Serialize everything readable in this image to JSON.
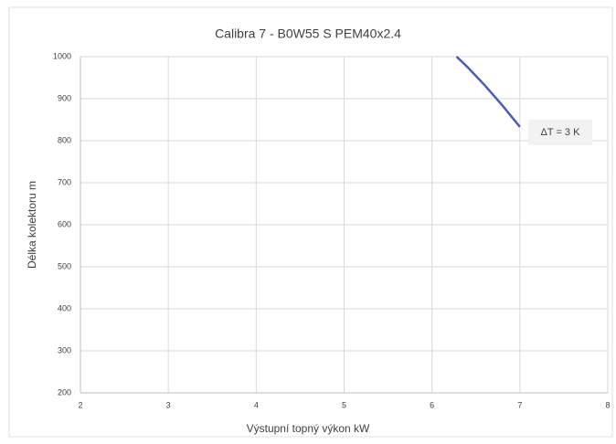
{
  "chart_data": {
    "type": "line",
    "title": "Calibra 7 - B0W55 S  PEM40x2.4",
    "x_label": "Výstupní topný výkon kW",
    "y_label": "Délka kolektoru m",
    "annotation": "ΔT = 3 K",
    "x": [
      6.28,
      6.4,
      6.6,
      6.8,
      7.0
    ],
    "series": [
      {
        "color": "#4a5bbd",
        "values": [
          1000,
          976,
          932,
          884,
          833
        ]
      }
    ],
    "xlim": [
      2,
      8
    ],
    "xticks": [
      2,
      3,
      4,
      5,
      6,
      7,
      8
    ],
    "ylim": [
      200,
      1000
    ],
    "yticks": [
      200,
      300,
      400,
      500,
      600,
      700,
      800,
      900,
      1000
    ],
    "grid": true
  }
}
